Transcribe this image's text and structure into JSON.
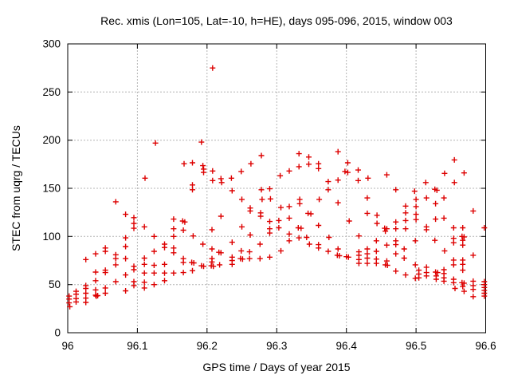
{
  "window": {
    "title": "Rec. xmis (Lon=105, Lat=-10, h=HE), days 095-096, 2015, window 003"
  },
  "colors": {
    "marker": "#dd0000",
    "grid": "#b4b4b4",
    "axis": "#000000",
    "text": "#000000",
    "background": "#ffffff"
  },
  "chart_data": {
    "type": "scatter",
    "title": "Rec. xmis (Lon=105, Lat=-10, h=HE), days 095-096, 2015, window 003",
    "xlabel": "GPS time / Days of year 2015",
    "ylabel": "STEC from uqrg / TECUs",
    "xlim": [
      96,
      96.6
    ],
    "ylim": [
      0,
      300
    ],
    "xticks": [
      96,
      96.1,
      96.2,
      96.3,
      96.4,
      96.5,
      96.6
    ],
    "xtick_labels": [
      "96",
      "96.1",
      "96.2",
      "96.3",
      "96.4",
      "96.5",
      "96.6"
    ],
    "yticks": [
      0,
      50,
      100,
      150,
      200,
      250,
      300
    ],
    "ytick_labels": [
      "0",
      "50",
      "100",
      "150",
      "200",
      "250",
      "300"
    ],
    "grid": true,
    "grid_style": "dotted",
    "legend": "none",
    "marker": "plus",
    "marker_size": 7,
    "series": [
      {
        "name": "STEC from uqrg",
        "points": [
          [
            96.002,
            38
          ],
          [
            96.002,
            35
          ],
          [
            96.002,
            31
          ],
          [
            96.003,
            27
          ],
          [
            96.012,
            43
          ],
          [
            96.012,
            40
          ],
          [
            96.012,
            35.5
          ],
          [
            96.012,
            32
          ],
          [
            96.026,
            76
          ],
          [
            96.026,
            49
          ],
          [
            96.026,
            46
          ],
          [
            96.026,
            41
          ],
          [
            96.026,
            36
          ],
          [
            96.026,
            31.5
          ],
          [
            96.04,
            82
          ],
          [
            96.04,
            63
          ],
          [
            96.04,
            54
          ],
          [
            96.04,
            44.5
          ],
          [
            96.04,
            39
          ],
          [
            96.041,
            38
          ],
          [
            96.043,
            38.5
          ],
          [
            96.054,
            88
          ],
          [
            96.054,
            84.5
          ],
          [
            96.054,
            65
          ],
          [
            96.054,
            62.5
          ],
          [
            96.054,
            46.5
          ],
          [
            96.054,
            41
          ],
          [
            96.069,
            136
          ],
          [
            96.069,
            81
          ],
          [
            96.069,
            77
          ],
          [
            96.069,
            70.5
          ],
          [
            96.069,
            53
          ],
          [
            96.083,
            123
          ],
          [
            96.083,
            98.5
          ],
          [
            96.083,
            89.5
          ],
          [
            96.083,
            77
          ],
          [
            96.083,
            60
          ],
          [
            96.083,
            43.5
          ],
          [
            96.095,
            119.5
          ],
          [
            96.095,
            113.5
          ],
          [
            96.095,
            108.5
          ],
          [
            96.095,
            69
          ],
          [
            96.095,
            65.5
          ],
          [
            96.095,
            53
          ],
          [
            96.095,
            49
          ],
          [
            96.11,
            110
          ],
          [
            96.11,
            77.5
          ],
          [
            96.11,
            71
          ],
          [
            96.11,
            62
          ],
          [
            96.11,
            52.5
          ],
          [
            96.11,
            46.5
          ],
          [
            96.111,
            160.5
          ],
          [
            96.124,
            100
          ],
          [
            96.124,
            84.5
          ],
          [
            96.124,
            70
          ],
          [
            96.124,
            62
          ],
          [
            96.124,
            50
          ],
          [
            96.126,
            197
          ],
          [
            96.139,
            92
          ],
          [
            96.139,
            88.5
          ],
          [
            96.139,
            71
          ],
          [
            96.139,
            62
          ],
          [
            96.139,
            54
          ],
          [
            96.152,
            118
          ],
          [
            96.152,
            108
          ],
          [
            96.152,
            100
          ],
          [
            96.152,
            88
          ],
          [
            96.152,
            83
          ],
          [
            96.152,
            62
          ],
          [
            96.165,
            116
          ],
          [
            96.168,
            115
          ],
          [
            96.166,
            106.5
          ],
          [
            96.166,
            77
          ],
          [
            96.166,
            73
          ],
          [
            96.166,
            62.5
          ],
          [
            96.167,
            175.5
          ],
          [
            96.178,
            73
          ],
          [
            96.181,
            72.5
          ],
          [
            96.179,
            64.5
          ],
          [
            96.179,
            176.5
          ],
          [
            96.179,
            153.5
          ],
          [
            96.179,
            148.5
          ],
          [
            96.18,
            100.5
          ],
          [
            96.192,
            198
          ],
          [
            96.194,
            173.5
          ],
          [
            96.195,
            170
          ],
          [
            96.195,
            166.5
          ],
          [
            96.194,
            92
          ],
          [
            96.192,
            69.5
          ],
          [
            96.195,
            69
          ],
          [
            96.206,
            69.5
          ],
          [
            96.209,
            69
          ],
          [
            96.207,
            107
          ],
          [
            96.207,
            87
          ],
          [
            96.207,
            77
          ],
          [
            96.207,
            73.5
          ],
          [
            96.208,
            275
          ],
          [
            96.208,
            168
          ],
          [
            96.208,
            158
          ],
          [
            96.217,
            83.5
          ],
          [
            96.22,
            83
          ],
          [
            96.218,
            70.5
          ],
          [
            96.22,
            121
          ],
          [
            96.22,
            160
          ],
          [
            96.221,
            156
          ],
          [
            96.235,
            160.5
          ],
          [
            96.236,
            147.5
          ],
          [
            96.236,
            94
          ],
          [
            96.236,
            78.5
          ],
          [
            96.236,
            75
          ],
          [
            96.236,
            71
          ],
          [
            96.248,
            77
          ],
          [
            96.251,
            76.5
          ],
          [
            96.249,
            85
          ],
          [
            96.249,
            167.5
          ],
          [
            96.25,
            138.5
          ],
          [
            96.25,
            110
          ],
          [
            96.261,
            84
          ],
          [
            96.261,
            77
          ],
          [
            96.262,
            129.5
          ],
          [
            96.262,
            126.5
          ],
          [
            96.262,
            101.5
          ],
          [
            96.263,
            175.5
          ],
          [
            96.276,
            92
          ],
          [
            96.276,
            77
          ],
          [
            96.277,
            124.5
          ],
          [
            96.277,
            121
          ],
          [
            96.278,
            184
          ],
          [
            96.278,
            148.5
          ],
          [
            96.279,
            138.5
          ],
          [
            96.29,
            149.5
          ],
          [
            96.29,
            115.5
          ],
          [
            96.29,
            108
          ],
          [
            96.29,
            103.5
          ],
          [
            96.29,
            78.5
          ],
          [
            96.291,
            139
          ],
          [
            96.303,
            116.5
          ],
          [
            96.303,
            109
          ],
          [
            96.305,
            163
          ],
          [
            96.306,
            130
          ],
          [
            96.306,
            85
          ],
          [
            96.318,
            168
          ],
          [
            96.318,
            131
          ],
          [
            96.318,
            119
          ],
          [
            96.318,
            102.5
          ],
          [
            96.318,
            95.5
          ],
          [
            96.331,
            109
          ],
          [
            96.335,
            108.5
          ],
          [
            96.332,
            186
          ],
          [
            96.332,
            172.5
          ],
          [
            96.332,
            98.5
          ],
          [
            96.333,
            138.5
          ],
          [
            96.333,
            134
          ],
          [
            96.345,
            124
          ],
          [
            96.349,
            123.5
          ],
          [
            96.346,
            182.5
          ],
          [
            96.346,
            175
          ],
          [
            96.343,
            99
          ],
          [
            96.347,
            92
          ],
          [
            96.36,
            175.5
          ],
          [
            96.36,
            170.5
          ],
          [
            96.36,
            111.5
          ],
          [
            96.36,
            91.5
          ],
          [
            96.36,
            88
          ],
          [
            96.361,
            138.5
          ],
          [
            96.374,
            157
          ],
          [
            96.374,
            148.5
          ],
          [
            96.374,
            84.5
          ],
          [
            96.375,
            99
          ],
          [
            96.387,
            80.5
          ],
          [
            96.39,
            80
          ],
          [
            96.388,
            188
          ],
          [
            96.388,
            158.5
          ],
          [
            96.388,
            135
          ],
          [
            96.388,
            87
          ],
          [
            96.398,
            167.5
          ],
          [
            96.4,
            79
          ],
          [
            96.403,
            78.5
          ],
          [
            96.402,
            176.5
          ],
          [
            96.402,
            166.5
          ],
          [
            96.404,
            116
          ],
          [
            96.417,
            169
          ],
          [
            96.417,
            158
          ],
          [
            96.418,
            100.5
          ],
          [
            96.418,
            84
          ],
          [
            96.418,
            80.5
          ],
          [
            96.418,
            76
          ],
          [
            96.418,
            72
          ],
          [
            96.43,
            140
          ],
          [
            96.43,
            124
          ],
          [
            96.43,
            87
          ],
          [
            96.43,
            82
          ],
          [
            96.43,
            77.5
          ],
          [
            96.43,
            72
          ],
          [
            96.431,
            160.5
          ],
          [
            96.443,
            95.5
          ],
          [
            96.443,
            84.5
          ],
          [
            96.443,
            76.5
          ],
          [
            96.443,
            72
          ],
          [
            96.444,
            122
          ],
          [
            96.444,
            113.5
          ],
          [
            96.455,
            108.5
          ],
          [
            96.458,
            108
          ],
          [
            96.456,
            105.5
          ],
          [
            96.458,
            91
          ],
          [
            96.458,
            74.5
          ],
          [
            96.456,
            70.5
          ],
          [
            96.459,
            70
          ],
          [
            96.458,
            164
          ],
          [
            96.471,
            148.5
          ],
          [
            96.471,
            115
          ],
          [
            96.471,
            108
          ],
          [
            96.471,
            95.5
          ],
          [
            96.471,
            91.5
          ],
          [
            96.471,
            82
          ],
          [
            96.471,
            64
          ],
          [
            96.483,
            87
          ],
          [
            96.483,
            77.5
          ],
          [
            96.485,
            131.5
          ],
          [
            96.485,
            124.5
          ],
          [
            96.485,
            116.5
          ],
          [
            96.485,
            108
          ],
          [
            96.485,
            60
          ],
          [
            96.498,
            147
          ],
          [
            96.5,
            138.5
          ],
          [
            96.5,
            131
          ],
          [
            96.5,
            123
          ],
          [
            96.5,
            117.5
          ],
          [
            96.499,
            95.5
          ],
          [
            96.499,
            70.5
          ],
          [
            96.499,
            56.5
          ],
          [
            96.504,
            65
          ],
          [
            96.504,
            61
          ],
          [
            96.504,
            57
          ],
          [
            96.514,
            156
          ],
          [
            96.515,
            140
          ],
          [
            96.515,
            110
          ],
          [
            96.515,
            107
          ],
          [
            96.515,
            68
          ],
          [
            96.515,
            62.5
          ],
          [
            96.515,
            59
          ],
          [
            96.527,
            149
          ],
          [
            96.53,
            148
          ],
          [
            96.527,
            96
          ],
          [
            96.528,
            134
          ],
          [
            96.528,
            118
          ],
          [
            96.528,
            63
          ],
          [
            96.531,
            62.5
          ],
          [
            96.529,
            59
          ],
          [
            96.529,
            55.5
          ],
          [
            96.54,
            140
          ],
          [
            96.54,
            119
          ],
          [
            96.541,
            85
          ],
          [
            96.54,
            65.5
          ],
          [
            96.54,
            61.5
          ],
          [
            96.54,
            57
          ],
          [
            96.54,
            53.5
          ],
          [
            96.541,
            165.5
          ],
          [
            96.554,
            109
          ],
          [
            96.554,
            98
          ],
          [
            96.554,
            93.5
          ],
          [
            96.554,
            75.5
          ],
          [
            96.554,
            70.5
          ],
          [
            96.554,
            55.5
          ],
          [
            96.554,
            52
          ],
          [
            96.555,
            179.5
          ],
          [
            96.555,
            156
          ],
          [
            96.556,
            46
          ],
          [
            96.566,
            100
          ],
          [
            96.569,
            99.5
          ],
          [
            96.567,
            96
          ],
          [
            96.567,
            91
          ],
          [
            96.567,
            109
          ],
          [
            96.567,
            75.5
          ],
          [
            96.567,
            71
          ],
          [
            96.567,
            65
          ],
          [
            96.566,
            52
          ],
          [
            96.569,
            51.5
          ],
          [
            96.567,
            48
          ],
          [
            96.569,
            43
          ],
          [
            96.569,
            166
          ],
          [
            96.582,
            126.5
          ],
          [
            96.582,
            80.5
          ],
          [
            96.582,
            53.5
          ],
          [
            96.582,
            49
          ],
          [
            96.582,
            45
          ],
          [
            96.582,
            37.5
          ],
          [
            96.598,
            109
          ],
          [
            96.598,
            53
          ],
          [
            96.598,
            50
          ],
          [
            96.598,
            47
          ],
          [
            96.598,
            44
          ],
          [
            96.598,
            41
          ],
          [
            96.598,
            38
          ]
        ]
      }
    ]
  }
}
